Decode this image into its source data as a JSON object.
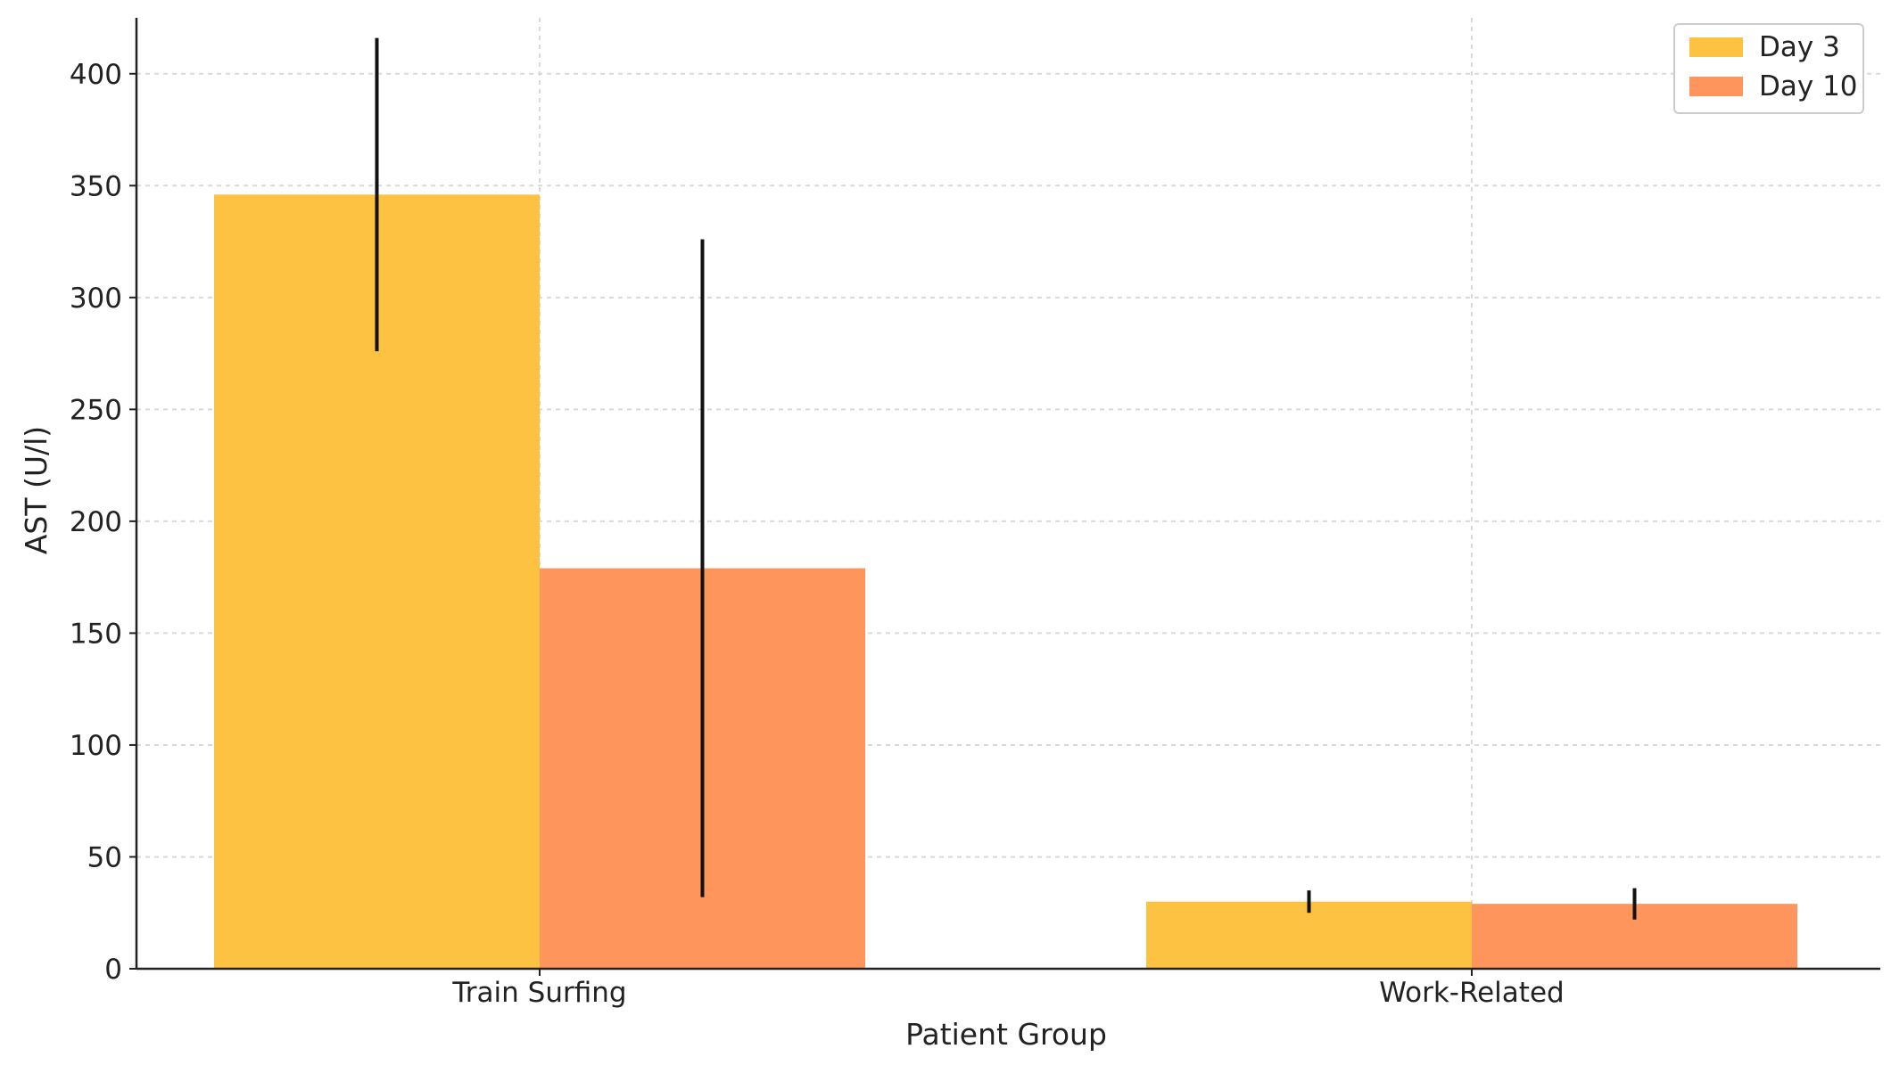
{
  "chart_data": {
    "type": "bar",
    "title": "",
    "xlabel": "Patient Group",
    "ylabel": "AST (U/l)",
    "categories": [
      "Train Surfing",
      "Work-Related"
    ],
    "series": [
      {
        "name": "Day 3",
        "values": [
          346,
          30
        ],
        "error": [
          70,
          5
        ],
        "color": "#FDC241"
      },
      {
        "name": "Day 10",
        "values": [
          179,
          29
        ],
        "error": [
          147,
          7
        ],
        "color": "#FE955C"
      }
    ],
    "ylim": [
      0,
      425
    ],
    "yticks": [
      0,
      50,
      100,
      150,
      200,
      250,
      300,
      350,
      400
    ],
    "grid": true,
    "legend_position": "top-right"
  }
}
